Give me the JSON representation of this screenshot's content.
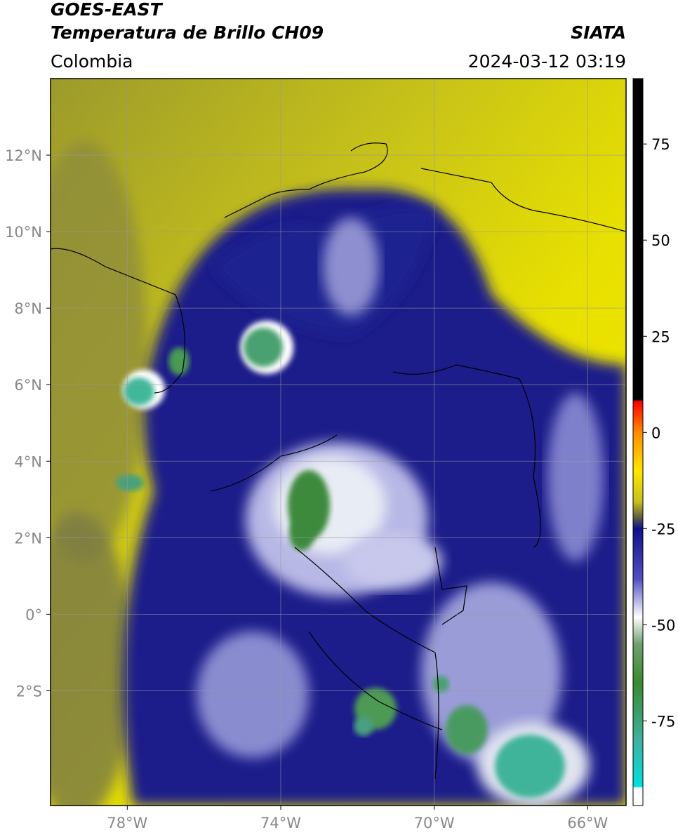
{
  "header": {
    "title": "GOES-EAST",
    "subtitle": "Temperatura de Brillo CH09",
    "source": "SIATA",
    "region": "Colombia",
    "datetime": "2024-03-12 03:19"
  },
  "map": {
    "xlim": [
      -80,
      -65
    ],
    "ylim": [
      -5,
      14
    ],
    "xticks": [
      {
        "value": -78,
        "label": "78°W"
      },
      {
        "value": -74,
        "label": "74°W"
      },
      {
        "value": -70,
        "label": "70°W"
      },
      {
        "value": -66,
        "label": "66°W"
      }
    ],
    "yticks": [
      {
        "value": 12,
        "label": "12°N"
      },
      {
        "value": 10,
        "label": "10°N"
      },
      {
        "value": 8,
        "label": "8°N"
      },
      {
        "value": 6,
        "label": "6°N"
      },
      {
        "value": 4,
        "label": "4°N"
      },
      {
        "value": 2,
        "label": "2°N"
      },
      {
        "value": 0,
        "label": "0°"
      },
      {
        "value": -2,
        "label": "2°S"
      }
    ],
    "grid": true
  },
  "colorbar": {
    "lim": [
      -97,
      92
    ],
    "ticks": [
      75,
      50,
      25,
      0,
      -25,
      -50,
      -75
    ]
  }
}
